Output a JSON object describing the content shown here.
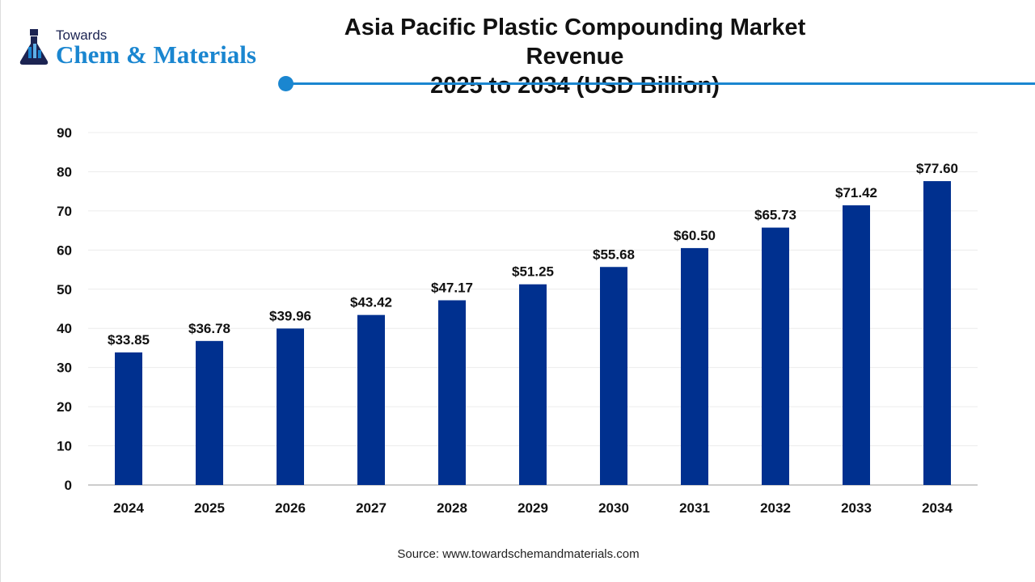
{
  "logo": {
    "line1": "Towards",
    "line2": "Chem & Materials"
  },
  "title_line1": "Asia Pacific Plastic Compounding Market Revenue",
  "title_line2": "2025 to 2034 (USD Billion)",
  "source": "Source: www.towardschemandmaterials.com",
  "colors": {
    "bar": "#00308f",
    "accent": "#1a86d0"
  },
  "chart_data": {
    "type": "bar",
    "title": "Asia Pacific Plastic Compounding Market Revenue 2025 to 2034 (USD Billion)",
    "categories": [
      "2024",
      "2025",
      "2026",
      "2027",
      "2028",
      "2029",
      "2030",
      "2031",
      "2032",
      "2033",
      "2034"
    ],
    "values": [
      33.85,
      36.78,
      39.96,
      43.42,
      47.17,
      51.25,
      55.68,
      60.5,
      65.73,
      71.42,
      77.6
    ],
    "data_labels": [
      "$33.85",
      "$36.78",
      "$39.96",
      "$43.42",
      "$47.17",
      "$51.25",
      "$55.68",
      "$60.50",
      "$65.73",
      "$71.42",
      "$77.60"
    ],
    "yticks": [
      0,
      10,
      20,
      30,
      40,
      50,
      60,
      70,
      80,
      90
    ],
    "ylim": [
      0,
      90
    ],
    "xlabel": "",
    "ylabel": "",
    "grid": true,
    "legend": "none"
  }
}
